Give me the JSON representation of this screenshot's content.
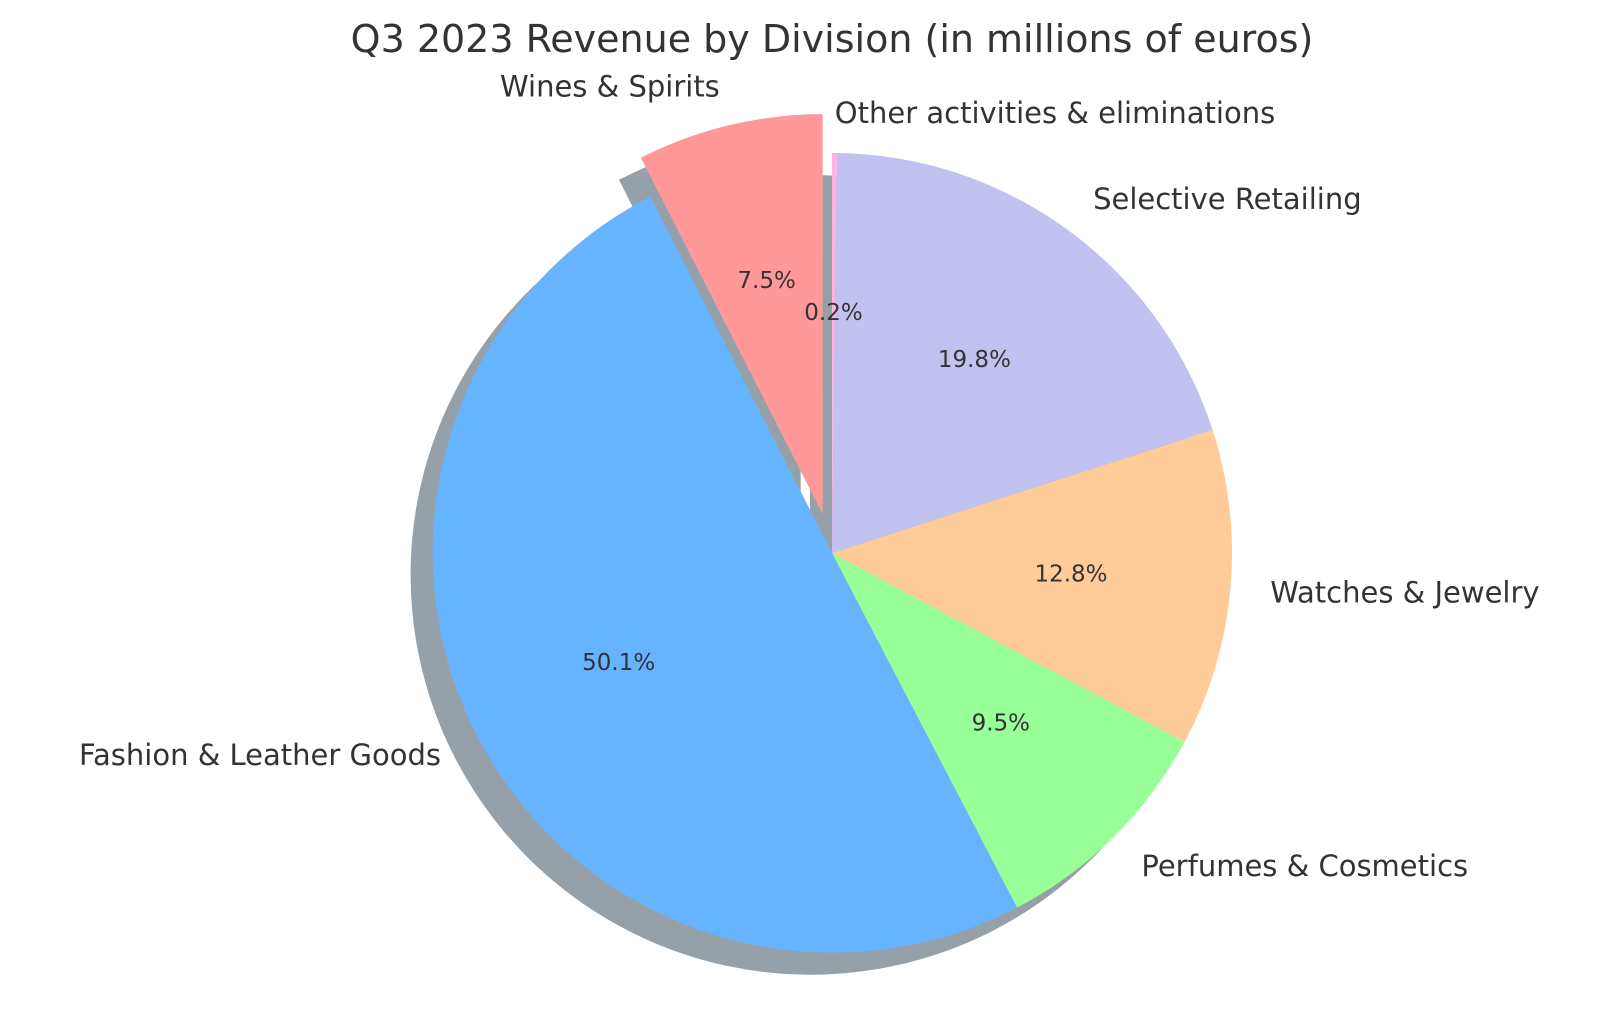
{
  "chart_data": {
    "type": "pie",
    "title": "Q3 2023 Revenue by Division (in millions of euros)",
    "start_angle_deg": 90,
    "direction": "counterclockwise",
    "shadow": true,
    "slices": [
      {
        "label": "Wines & Spirits",
        "percent": 7.5,
        "percent_label": "7.5%",
        "color": "#ff9999",
        "exploded": true
      },
      {
        "label": "Fashion & Leather Goods",
        "percent": 50.1,
        "percent_label": "50.1%",
        "color": "#66b3ff",
        "exploded": false
      },
      {
        "label": "Perfumes & Cosmetics",
        "percent": 9.5,
        "percent_label": "9.5%",
        "color": "#99ff99",
        "exploded": false
      },
      {
        "label": "Watches & Jewelry",
        "percent": 12.8,
        "percent_label": "12.8%",
        "color": "#ffcc99",
        "exploded": false
      },
      {
        "label": "Selective Retailing",
        "percent": 19.8,
        "percent_label": "19.8%",
        "color": "#c2c2f0",
        "exploded": false
      },
      {
        "label": "Other activities & eliminations",
        "percent": 0.2,
        "percent_label": "0.2%",
        "color": "#ffb3e6",
        "exploded": false
      }
    ]
  }
}
